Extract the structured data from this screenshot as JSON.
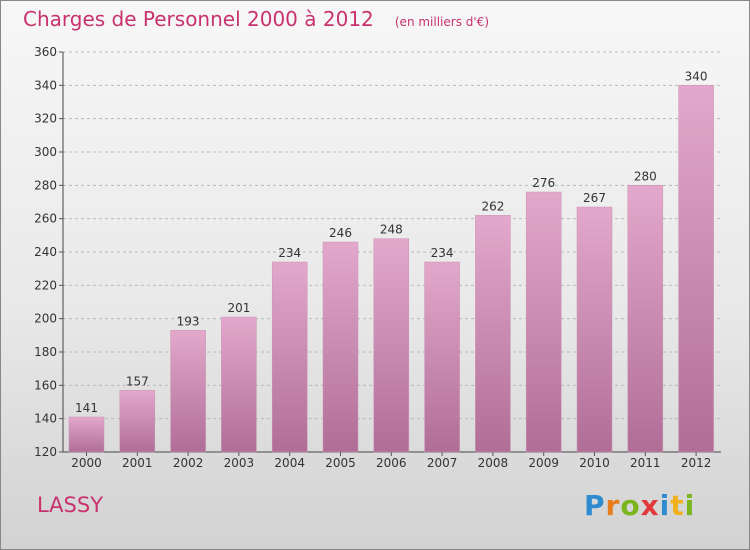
{
  "chart_data": {
    "type": "bar",
    "title": "Charges de Personnel 2000 à 2012",
    "subtitle": "(en milliers d'€)",
    "categories": [
      "2000",
      "2001",
      "2002",
      "2003",
      "2004",
      "2005",
      "2006",
      "2007",
      "2008",
      "2009",
      "2010",
      "2011",
      "2012"
    ],
    "values": [
      141,
      157,
      193,
      201,
      234,
      246,
      248,
      234,
      262,
      276,
      267,
      280,
      340
    ],
    "ylim": [
      120,
      360
    ],
    "yticks": [
      120,
      140,
      160,
      180,
      200,
      220,
      240,
      260,
      280,
      300,
      320,
      340,
      360
    ],
    "grid": true,
    "bar_color": "#d98bb6",
    "accent_color": "#c8326e"
  },
  "footer": {
    "location": "LASSY",
    "logo_letters": [
      "P",
      "r",
      "o",
      "x",
      "i",
      "t",
      "i"
    ],
    "logo_colors": [
      "#2e8bd0",
      "#e87d1e",
      "#7ab51d",
      "#e23a3a",
      "#2e8bd0",
      "#f2b01e",
      "#7ab51d"
    ]
  }
}
